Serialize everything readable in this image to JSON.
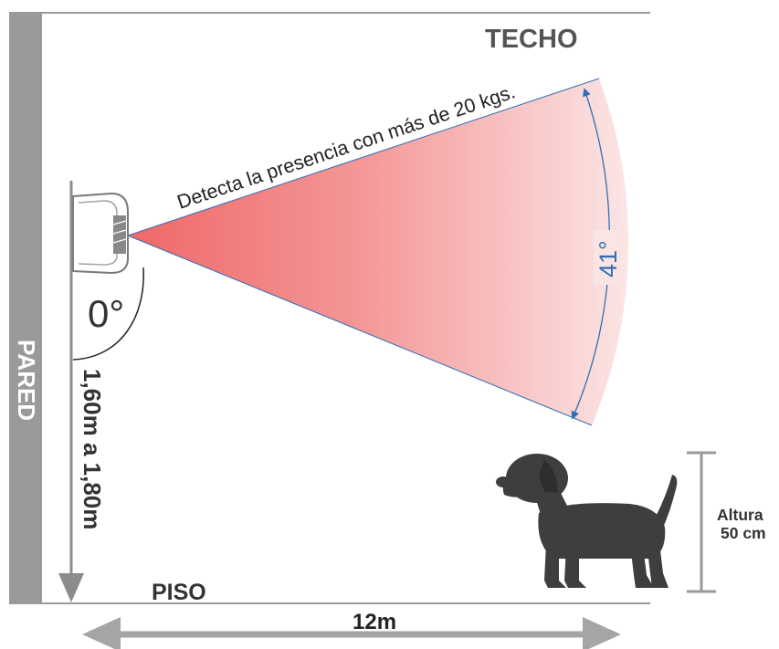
{
  "labels": {
    "ceiling": "TECHO",
    "wall": "PARED",
    "floor": "PISO",
    "detection_text": "Detecta la presencia con más de 20 kgs.",
    "beam_angle": "41°",
    "mount_angle": "0°",
    "mount_height": "1,60m a 1,80m",
    "range": "12m",
    "pet_height_title": "Altura",
    "pet_height_value": "50 cm"
  },
  "colors": {
    "wall": "#9a9a9a",
    "lines": "#9a9a9a",
    "text_dark": "#3d3d3d",
    "beam": "#f07d7d",
    "angle_accent": "#2f6fb5",
    "dog": "#3e3e3e"
  },
  "icons": {
    "sensor": "pir-sensor-icon",
    "dog": "dog-silhouette-icon"
  }
}
